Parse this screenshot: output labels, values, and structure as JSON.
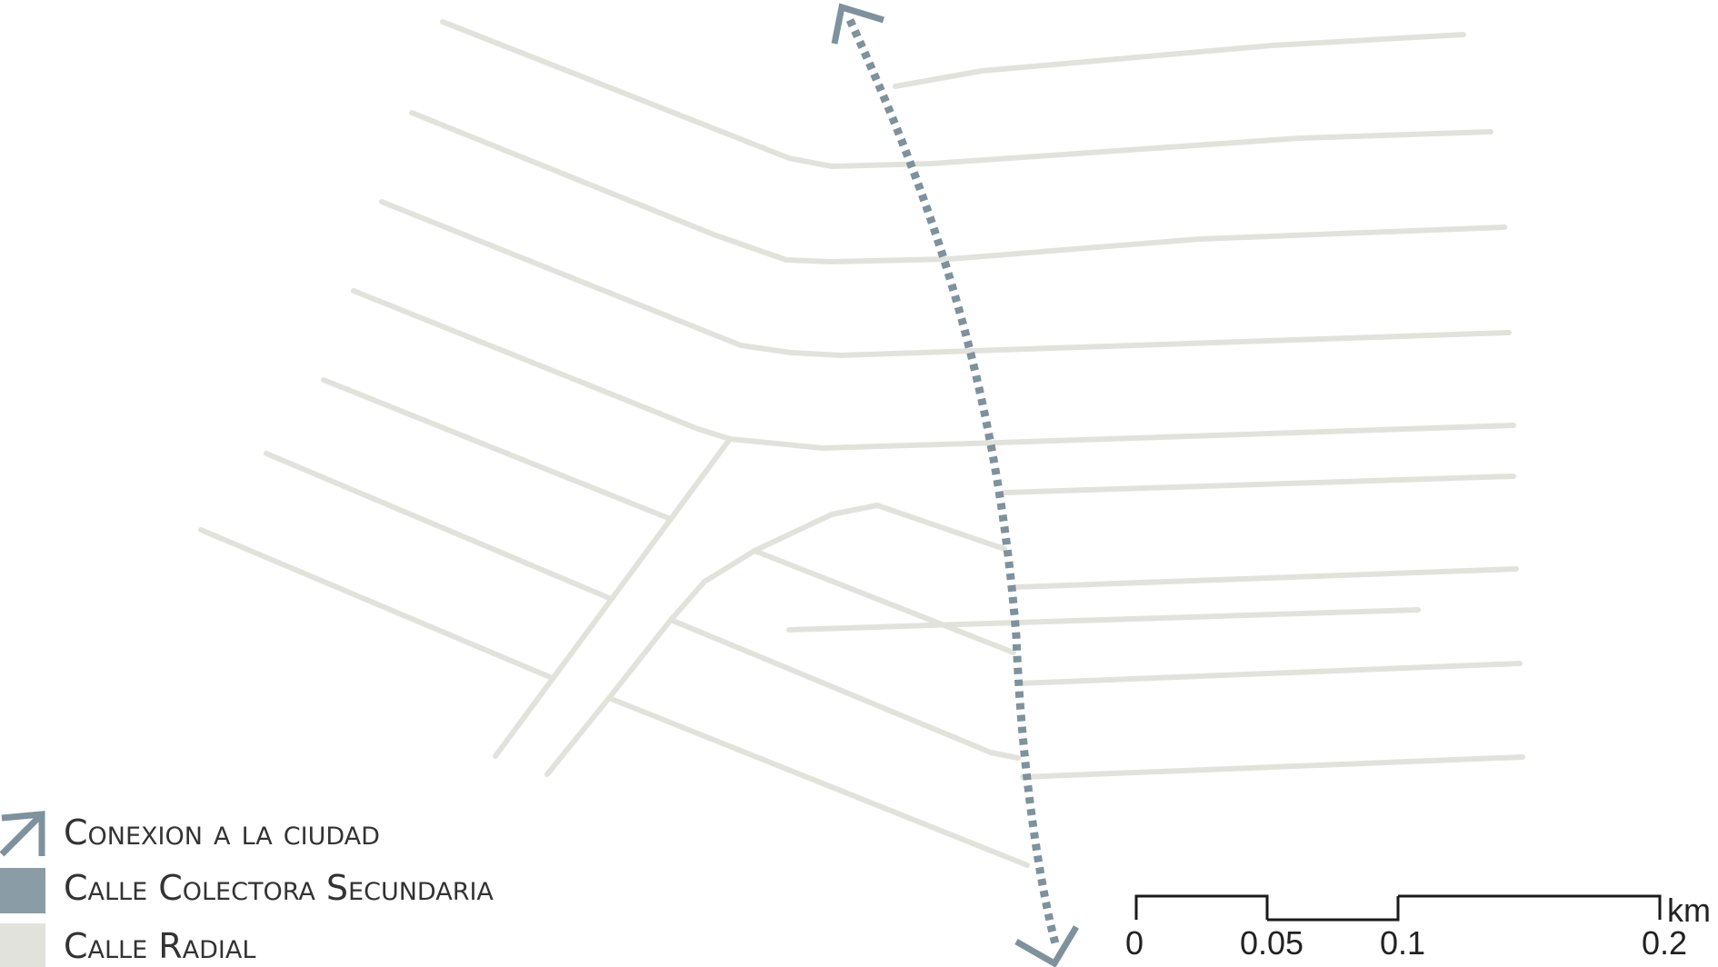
{
  "colors": {
    "conexion": "#7e929d",
    "colectora": "#8a9ca6",
    "radial": "#e2e2dd",
    "scale_bar": "#1a1a1a",
    "text": "#333333"
  },
  "legend": {
    "items": [
      {
        "label": "Conexion a la ciudad",
        "icon": "arrow-icon"
      },
      {
        "label": "Calle Colectora Secundaria",
        "icon": "swatch-colectora"
      },
      {
        "label": "Calle Radial",
        "icon": "swatch-radial"
      }
    ]
  },
  "scale_bar": {
    "unit": "km",
    "ticks": [
      "0",
      "0.05",
      "0.1",
      "0.2"
    ]
  }
}
